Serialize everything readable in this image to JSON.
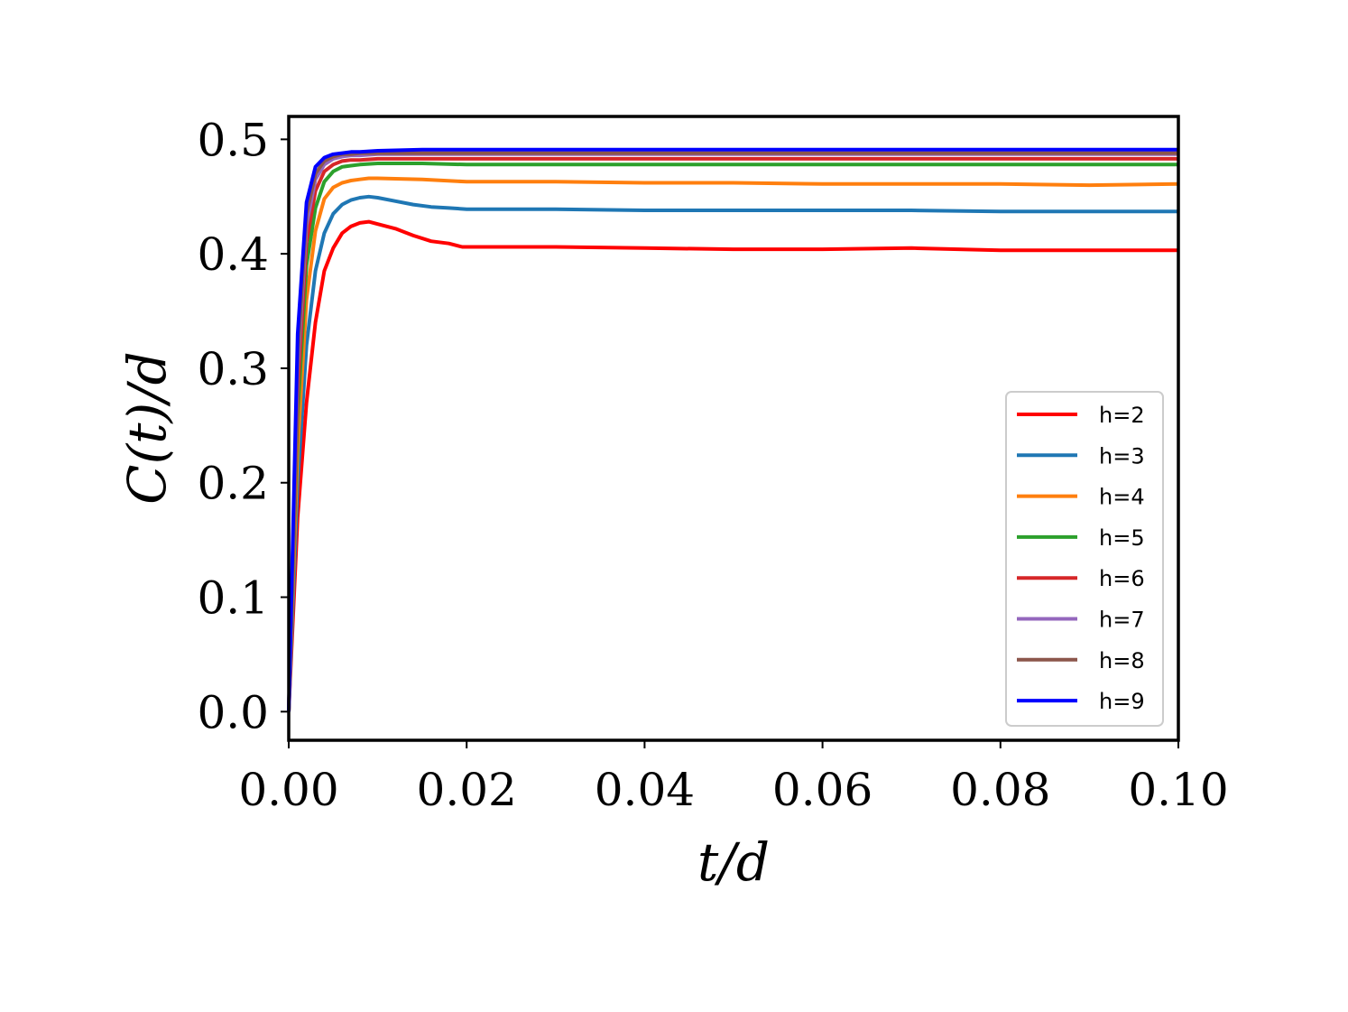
{
  "chart_data": {
    "type": "line",
    "title": "",
    "xlabel": "t/d",
    "ylabel": "C(t)/d",
    "xlim": [
      0.0,
      0.1
    ],
    "ylim": [
      -0.025,
      0.52
    ],
    "x_ticks": [
      "0.00",
      "0.02",
      "0.04",
      "0.06",
      "0.08",
      "0.10"
    ],
    "x_tick_values": [
      0.0,
      0.02,
      0.04,
      0.06,
      0.08,
      0.1
    ],
    "y_ticks": [
      "0.0",
      "0.1",
      "0.2",
      "0.3",
      "0.4",
      "0.5"
    ],
    "y_tick_values": [
      0.0,
      0.1,
      0.2,
      0.3,
      0.4,
      0.5
    ],
    "grid": false,
    "legend_position": "center-right",
    "series": [
      {
        "name": "h=2",
        "color": "#ff0000",
        "x": [
          0,
          0.001,
          0.002,
          0.003,
          0.004,
          0.005,
          0.006,
          0.007,
          0.008,
          0.009,
          0.01,
          0.012,
          0.014,
          0.016,
          0.018,
          0.0195,
          0.02,
          0.03,
          0.04,
          0.05,
          0.06,
          0.07,
          0.08,
          0.09,
          0.1
        ],
        "y": [
          0,
          0.17,
          0.27,
          0.34,
          0.385,
          0.405,
          0.418,
          0.424,
          0.427,
          0.428,
          0.426,
          0.422,
          0.416,
          0.411,
          0.409,
          0.406,
          0.406,
          0.406,
          0.405,
          0.404,
          0.404,
          0.405,
          0.403,
          0.403,
          0.403
        ]
      },
      {
        "name": "h=3",
        "color": "#1f77b4",
        "x": [
          0,
          0.001,
          0.002,
          0.003,
          0.004,
          0.005,
          0.006,
          0.007,
          0.008,
          0.009,
          0.01,
          0.012,
          0.014,
          0.016,
          0.018,
          0.02,
          0.03,
          0.04,
          0.05,
          0.06,
          0.07,
          0.08,
          0.09,
          0.1
        ],
        "y": [
          0,
          0.2,
          0.32,
          0.385,
          0.418,
          0.435,
          0.443,
          0.447,
          0.449,
          0.45,
          0.449,
          0.446,
          0.443,
          0.441,
          0.44,
          0.439,
          0.439,
          0.438,
          0.438,
          0.438,
          0.438,
          0.437,
          0.437,
          0.437
        ]
      },
      {
        "name": "h=4",
        "color": "#ff7f0e",
        "x": [
          0,
          0.001,
          0.002,
          0.003,
          0.004,
          0.005,
          0.006,
          0.007,
          0.008,
          0.009,
          0.01,
          0.015,
          0.02,
          0.03,
          0.04,
          0.05,
          0.06,
          0.07,
          0.08,
          0.09,
          0.1
        ],
        "y": [
          0,
          0.23,
          0.36,
          0.42,
          0.448,
          0.458,
          0.462,
          0.464,
          0.465,
          0.466,
          0.466,
          0.465,
          0.463,
          0.463,
          0.462,
          0.462,
          0.461,
          0.461,
          0.461,
          0.46,
          0.461
        ]
      },
      {
        "name": "h=5",
        "color": "#2ca02c",
        "x": [
          0,
          0.001,
          0.002,
          0.003,
          0.004,
          0.005,
          0.006,
          0.007,
          0.008,
          0.01,
          0.015,
          0.02,
          0.03,
          0.04,
          0.05,
          0.06,
          0.07,
          0.08,
          0.09,
          0.1
        ],
        "y": [
          0,
          0.26,
          0.39,
          0.44,
          0.463,
          0.472,
          0.476,
          0.477,
          0.478,
          0.479,
          0.479,
          0.478,
          0.478,
          0.478,
          0.478,
          0.478,
          0.478,
          0.478,
          0.478,
          0.478
        ]
      },
      {
        "name": "h=6",
        "color": "#d62728",
        "x": [
          0,
          0.001,
          0.002,
          0.003,
          0.004,
          0.005,
          0.006,
          0.007,
          0.008,
          0.01,
          0.015,
          0.02,
          0.03,
          0.04,
          0.05,
          0.06,
          0.07,
          0.08,
          0.09,
          0.1
        ],
        "y": [
          0,
          0.28,
          0.41,
          0.455,
          0.472,
          0.478,
          0.481,
          0.482,
          0.482,
          0.483,
          0.483,
          0.483,
          0.483,
          0.483,
          0.483,
          0.483,
          0.483,
          0.483,
          0.483,
          0.483
        ]
      },
      {
        "name": "h=7",
        "color": "#9467bd",
        "x": [
          0,
          0.001,
          0.002,
          0.003,
          0.004,
          0.005,
          0.006,
          0.007,
          0.008,
          0.01,
          0.015,
          0.02,
          0.03,
          0.04,
          0.05,
          0.06,
          0.07,
          0.08,
          0.09,
          0.1
        ],
        "y": [
          0,
          0.3,
          0.425,
          0.465,
          0.478,
          0.483,
          0.485,
          0.486,
          0.486,
          0.487,
          0.487,
          0.487,
          0.487,
          0.487,
          0.487,
          0.487,
          0.487,
          0.487,
          0.487,
          0.487
        ]
      },
      {
        "name": "h=8",
        "color": "#8c564b",
        "x": [
          0,
          0.001,
          0.002,
          0.003,
          0.004,
          0.005,
          0.006,
          0.007,
          0.008,
          0.01,
          0.015,
          0.02,
          0.03,
          0.04,
          0.05,
          0.06,
          0.07,
          0.08,
          0.09,
          0.1
        ],
        "y": [
          0,
          0.31,
          0.435,
          0.47,
          0.481,
          0.485,
          0.487,
          0.487,
          0.488,
          0.488,
          0.488,
          0.488,
          0.488,
          0.488,
          0.488,
          0.488,
          0.488,
          0.488,
          0.488,
          0.488
        ]
      },
      {
        "name": "h=9",
        "color": "#0000ff",
        "x": [
          0,
          0.001,
          0.002,
          0.003,
          0.004,
          0.005,
          0.006,
          0.007,
          0.008,
          0.01,
          0.015,
          0.02,
          0.03,
          0.04,
          0.05,
          0.06,
          0.07,
          0.08,
          0.09,
          0.1
        ],
        "y": [
          0,
          0.33,
          0.445,
          0.476,
          0.484,
          0.487,
          0.488,
          0.489,
          0.489,
          0.49,
          0.491,
          0.491,
          0.491,
          0.491,
          0.491,
          0.491,
          0.491,
          0.491,
          0.491,
          0.491
        ]
      }
    ]
  }
}
